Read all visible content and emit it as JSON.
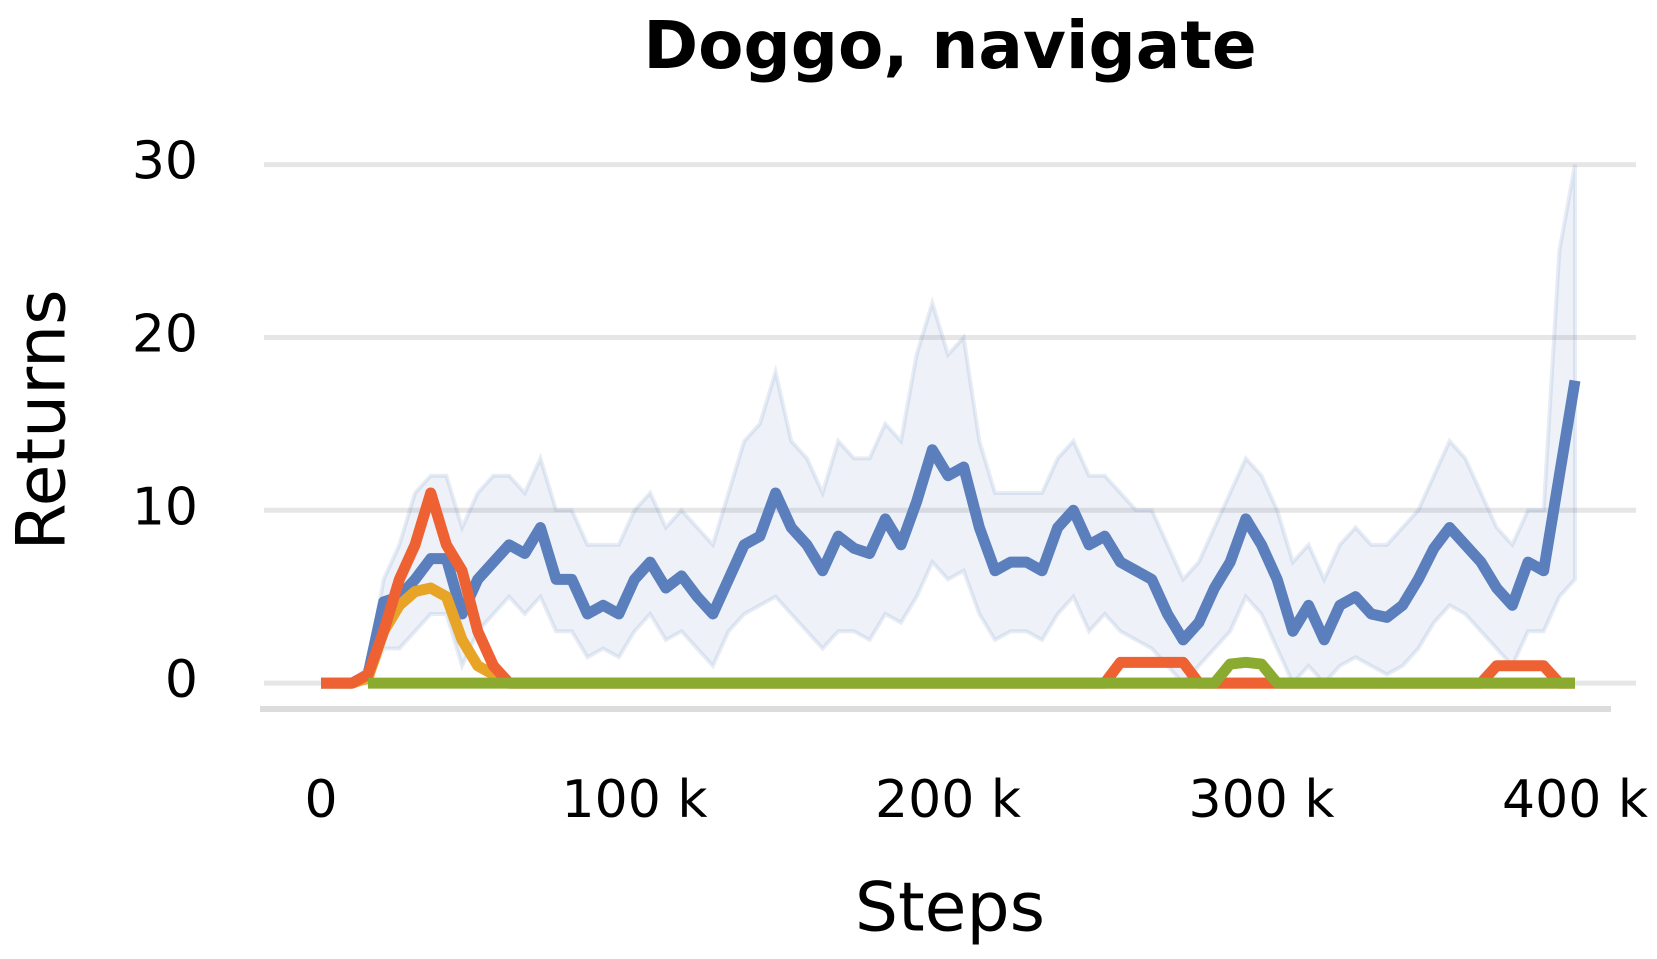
{
  "chart_data": {
    "type": "line",
    "title": "Doggo, navigate",
    "xlabel": "Steps",
    "ylabel": "Returns",
    "x": [
      0,
      5000,
      10000,
      15000,
      20000,
      25000,
      30000,
      35000,
      40000,
      45000,
      50000,
      55000,
      60000,
      65000,
      70000,
      75000,
      80000,
      85000,
      90000,
      95000,
      100000,
      105000,
      110000,
      115000,
      120000,
      125000,
      130000,
      135000,
      140000,
      145000,
      150000,
      155000,
      160000,
      165000,
      170000,
      175000,
      180000,
      185000,
      190000,
      195000,
      200000,
      205000,
      210000,
      215000,
      220000,
      225000,
      230000,
      235000,
      240000,
      245000,
      250000,
      255000,
      260000,
      265000,
      270000,
      275000,
      280000,
      285000,
      290000,
      295000,
      300000,
      305000,
      310000,
      315000,
      320000,
      325000,
      330000,
      335000,
      340000,
      345000,
      350000,
      355000,
      360000,
      365000,
      370000,
      375000,
      380000,
      385000,
      390000,
      395000,
      400000
    ],
    "series": [
      {
        "color": "#5b7fbc",
        "values": [
          0,
          0,
          0,
          0.5,
          4.7,
          5,
          6,
          7.2,
          7.2,
          4,
          6,
          7,
          8,
          7.5,
          9,
          6,
          6,
          4,
          4.5,
          4,
          6,
          7,
          5.5,
          6.2,
          5,
          4,
          6,
          8,
          8.5,
          11,
          9,
          8,
          6.5,
          8.5,
          7.8,
          7.5,
          9.5,
          8,
          10.5,
          13.5,
          12,
          12.5,
          9,
          6.5,
          7,
          7,
          6.5,
          9,
          10,
          8,
          8.5,
          7,
          6.5,
          6,
          4,
          2.5,
          3.5,
          5.5,
          7,
          9.5,
          8,
          6,
          3,
          4.5,
          2.5,
          4.5,
          5,
          4,
          3.8,
          4.5,
          6,
          7.8,
          9,
          8,
          7,
          5.5,
          4.5,
          7,
          6.5,
          12,
          17.5
        ],
        "upper": [
          0,
          0,
          0,
          1,
          6,
          8,
          11,
          12,
          12,
          9,
          11,
          12,
          12,
          11,
          13,
          10,
          10,
          8,
          8,
          8,
          10,
          11,
          9,
          10,
          9,
          8,
          11,
          14,
          15,
          18,
          14,
          13,
          11,
          14,
          13,
          13,
          15,
          14,
          19,
          22,
          19,
          20,
          14,
          11,
          11,
          11,
          11,
          13,
          14,
          12,
          12,
          11,
          10,
          10,
          8,
          6,
          7,
          9,
          11,
          13,
          12,
          10,
          7,
          8,
          6,
          8,
          9,
          8,
          8,
          9,
          10,
          12,
          14,
          13,
          11,
          9,
          8,
          10,
          10,
          25,
          30
        ],
        "lower": [
          0,
          0,
          0,
          0,
          2,
          2,
          3,
          4,
          4,
          1,
          3,
          4,
          5,
          4,
          5,
          3,
          3,
          1.5,
          2,
          1.5,
          3,
          4,
          2.5,
          3,
          2,
          1,
          3,
          4,
          4.5,
          5,
          4,
          3,
          2,
          3,
          3,
          2.5,
          4,
          3.5,
          5,
          7,
          6,
          6.5,
          4,
          2.5,
          3,
          3,
          2.5,
          4,
          5,
          3,
          4,
          3,
          2.5,
          2,
          1,
          0,
          1,
          2,
          3,
          5,
          4,
          2,
          0,
          1,
          0,
          1,
          1.5,
          1,
          0.5,
          1,
          2,
          3.5,
          4.5,
          4,
          3,
          2,
          1,
          3,
          3,
          5,
          6
        ]
      },
      {
        "color": "#e8a427",
        "values": [
          0,
          0,
          0,
          0.3,
          3,
          4.5,
          5.3,
          5.5,
          5,
          2.5,
          1,
          0.5,
          0,
          0,
          0,
          0,
          0,
          0,
          0,
          0,
          0,
          0,
          0,
          0,
          0,
          0,
          0,
          0,
          0,
          0,
          0,
          0,
          0,
          0,
          0,
          0,
          0,
          0,
          0,
          0,
          0,
          0,
          0,
          0,
          0,
          0,
          0,
          0,
          0,
          0,
          0,
          0,
          0,
          0,
          0,
          0,
          0,
          0,
          0,
          0,
          0,
          0,
          0,
          0,
          0,
          0,
          0,
          0,
          0,
          0,
          0,
          0,
          0,
          0,
          0,
          0,
          0,
          0,
          0,
          0,
          0
        ]
      },
      {
        "color": "#ee6133",
        "values": [
          0,
          0,
          0,
          0.5,
          3,
          6,
          8,
          11,
          8,
          6.5,
          3,
          1,
          0,
          0,
          0,
          0,
          0,
          0,
          0,
          0,
          0,
          0,
          0,
          0,
          0,
          0,
          0,
          0,
          0,
          0,
          0,
          0,
          0,
          0,
          0,
          0,
          0,
          0,
          0,
          0,
          0,
          0,
          0,
          0,
          0,
          0,
          0,
          0,
          0,
          0,
          0,
          1.2,
          1.2,
          1.2,
          1.2,
          1.2,
          0,
          0,
          0,
          0,
          0,
          0,
          0,
          0,
          0,
          0,
          0,
          0,
          0,
          0,
          0,
          0,
          0,
          0,
          0,
          1,
          1,
          1,
          1,
          0,
          0
        ]
      },
      {
        "color": "#8aab2f",
        "values": [
          null,
          null,
          null,
          0,
          0,
          0,
          0,
          0,
          0,
          0,
          0,
          0,
          0,
          0,
          0,
          0,
          0,
          0,
          0,
          0,
          0,
          0,
          0,
          0,
          0,
          0,
          0,
          0,
          0,
          0,
          0,
          0,
          0,
          0,
          0,
          0,
          0,
          0,
          0,
          0,
          0,
          0,
          0,
          0,
          0,
          0,
          0,
          0,
          0,
          0,
          0,
          0,
          0,
          0,
          0,
          0,
          0,
          0,
          1.1,
          1.2,
          1.1,
          0,
          0,
          0,
          0,
          0,
          0,
          0,
          0,
          0,
          0,
          0,
          0,
          0,
          0,
          0,
          0,
          0,
          0,
          0,
          0
        ]
      }
    ],
    "xlim": [
      0,
      400000
    ],
    "xticks": [
      0,
      {
        "value": 100000,
        "label": "100 k"
      },
      {
        "value": 200000,
        "label": "200 k"
      },
      {
        "value": 300000,
        "label": "300 k"
      },
      {
        "value": 400000,
        "label": "400 k"
      }
    ],
    "ylim": [
      -1.5,
      30.5
    ],
    "yticks": [
      0,
      10,
      20,
      30
    ],
    "grid": true
  }
}
